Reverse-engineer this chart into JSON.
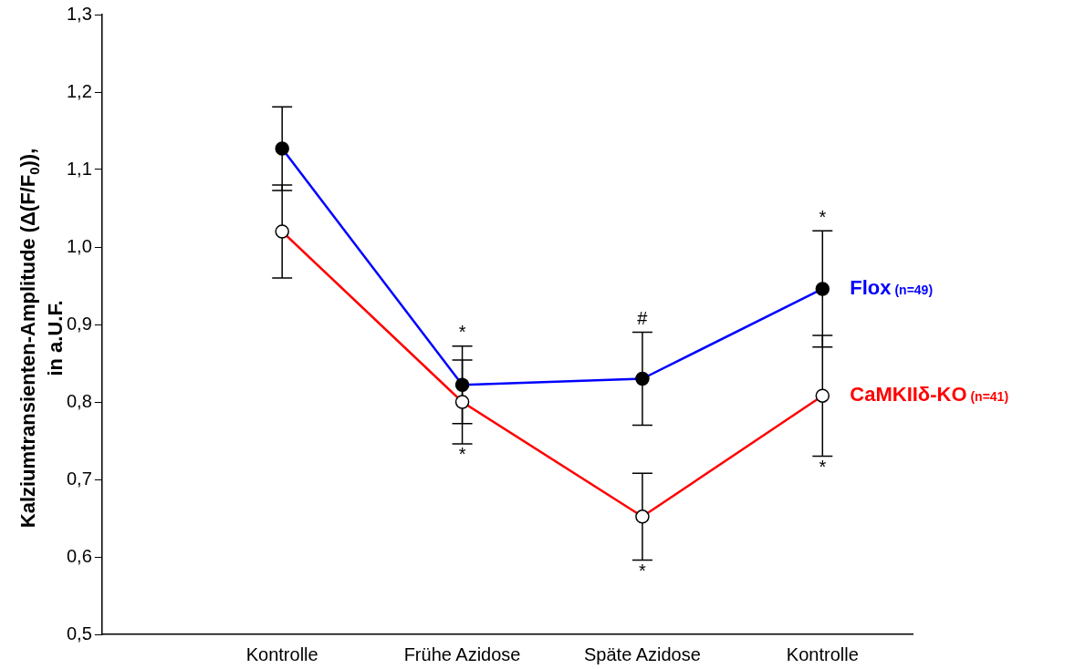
{
  "chart_data": {
    "type": "line",
    "ylabel": "Kalziumtransienten-Amplitude (Δ(F/F$_{0}$)), in a.U.F.",
    "categories": [
      "Kontrolle",
      "Frühe Azidose",
      "Späte Azidose",
      "Kontrolle"
    ],
    "series": [
      {
        "name": "Flox (n=49)",
        "color": "#0000ff",
        "values": [
          1.127,
          0.822,
          0.83,
          0.946
        ],
        "value_labels": [
          null,
          "*",
          "#",
          "*"
        ],
        "errors": [
          0.054,
          0.05,
          0.06,
          0.075
        ]
      },
      {
        "name": "CaMKIIδ-KO (n=41)",
        "color": "#ff0000",
        "values": [
          1.02,
          0.8,
          0.652,
          0.808
        ],
        "value_labels": [
          null,
          "*",
          "*",
          "*"
        ],
        "errors": [
          0.06,
          0.054,
          0.056,
          0.078
        ]
      }
    ],
    "ylim": [
      0.5,
      1.3
    ],
    "yticks": [
      {
        "value": 0.5,
        "label": "0,5"
      },
      {
        "value": 0.6,
        "label": "0,6"
      },
      {
        "value": 0.7,
        "label": "0,7"
      },
      {
        "value": 0.8,
        "label": "0,8"
      },
      {
        "value": 0.9,
        "label": "0,9"
      },
      {
        "value": 1.0,
        "label": "1,0"
      },
      {
        "value": 1.1,
        "label": "1,1"
      },
      {
        "value": 1.2,
        "label": "1,2"
      },
      {
        "value": 1.3,
        "label": "1,3"
      }
    ],
    "marker": "circle",
    "line_style": "solid",
    "grid": false,
    "legend": false
  }
}
